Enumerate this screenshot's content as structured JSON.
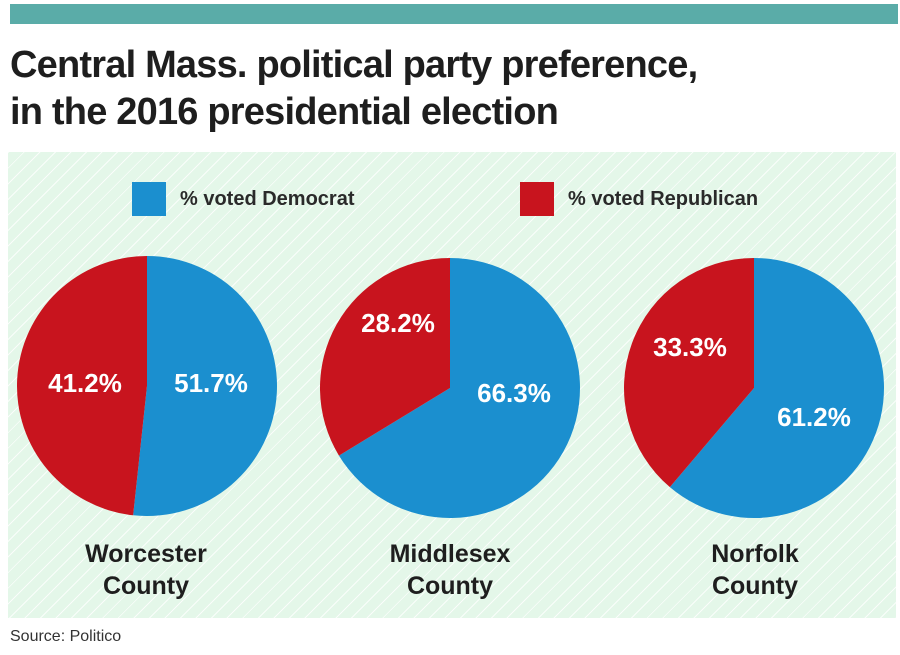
{
  "title": {
    "line1": "Central Mass. political party preference,",
    "line2": "in the 2016 presidential election"
  },
  "source": "Source: Politico",
  "colors": {
    "democrat": "#1b8fcf",
    "republican": "#c8141e",
    "panel_background": "#e4f7e9",
    "top_bar": "#5aaca8"
  },
  "chart_data": {
    "type": "pie",
    "legend": {
      "position": "top",
      "entries": [
        "% voted Democrat",
        "% voted Republican"
      ]
    },
    "charts": [
      {
        "county_line1": "Worcester",
        "county_line2": "County",
        "slices": [
          {
            "name": "% voted Democrat",
            "value": 51.7,
            "label": "51.7%"
          },
          {
            "name": "% voted Republican",
            "value": 41.2,
            "label": "41.2%"
          }
        ]
      },
      {
        "county_line1": "Middlesex",
        "county_line2": "County",
        "slices": [
          {
            "name": "% voted Democrat",
            "value": 66.3,
            "label": "66.3%"
          },
          {
            "name": "% voted Republican",
            "value": 28.2,
            "label": "28.2%"
          }
        ]
      },
      {
        "county_line1": "Norfolk",
        "county_line2": "County",
        "slices": [
          {
            "name": "% voted Democrat",
            "value": 61.2,
            "label": "61.2%"
          },
          {
            "name": "% voted Republican",
            "value": 33.3,
            "label": "33.3%"
          }
        ]
      }
    ]
  }
}
